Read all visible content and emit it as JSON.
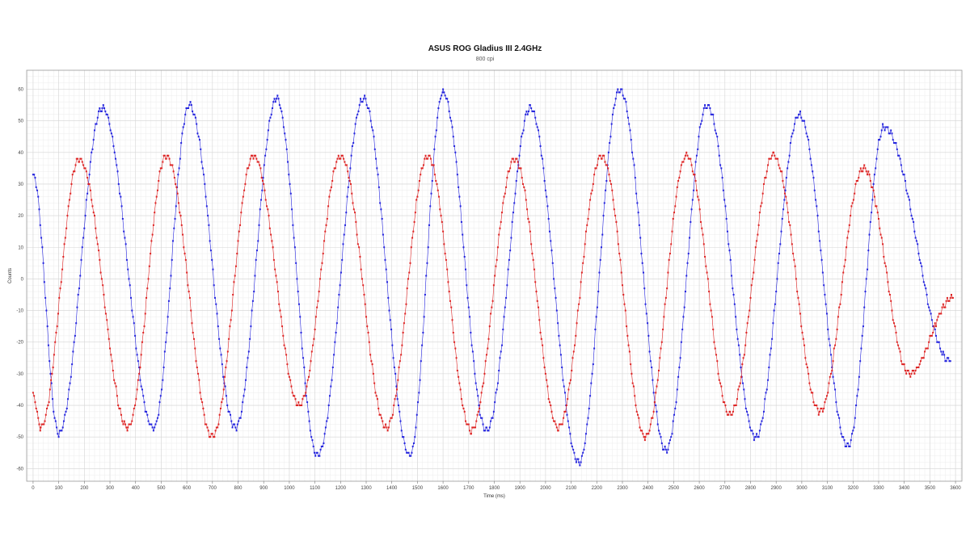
{
  "chart_data": {
    "type": "scatter",
    "title": "ASUS ROG Gladius III 2.4GHz",
    "subtitle": "800 cpi",
    "xlabel": "Time (ms)",
    "ylabel": "Counts",
    "xlim": [
      -25,
      3625
    ],
    "ylim": [
      -64,
      66
    ],
    "xticks": [
      0,
      100,
      200,
      300,
      400,
      500,
      600,
      700,
      800,
      900,
      1000,
      1100,
      1200,
      1300,
      1400,
      1500,
      1600,
      1700,
      1800,
      1900,
      2000,
      2100,
      2200,
      2300,
      2400,
      2500,
      2600,
      2700,
      2800,
      2900,
      3000,
      3100,
      3200,
      3300,
      3400,
      3500,
      3600
    ],
    "yticks": [
      -60,
      -50,
      -40,
      -30,
      -20,
      -10,
      0,
      10,
      20,
      30,
      40,
      50,
      60
    ],
    "grid": true,
    "series": [
      {
        "color": "#2222dd",
        "style": "line+markers",
        "sample_interval_ms": 4,
        "peaks": [
          [
            0,
            33
          ],
          [
            100,
            -49
          ],
          [
            270,
            54
          ],
          [
            470,
            -47
          ],
          [
            610,
            55
          ],
          [
            790,
            -47
          ],
          [
            950,
            57
          ],
          [
            1110,
            -56
          ],
          [
            1290,
            57
          ],
          [
            1470,
            -56
          ],
          [
            1600,
            59
          ],
          [
            1770,
            -48
          ],
          [
            1940,
            54
          ],
          [
            2130,
            -58
          ],
          [
            2290,
            60
          ],
          [
            2470,
            -54
          ],
          [
            2630,
            55
          ],
          [
            2820,
            -50
          ],
          [
            2990,
            52
          ],
          [
            3180,
            -53
          ],
          [
            3320,
            48
          ],
          [
            3580,
            -26
          ]
        ]
      },
      {
        "color": "#dd2222",
        "style": "line+markers",
        "sample_interval_ms": 4,
        "peaks": [
          [
            0,
            -37
          ],
          [
            30,
            -47
          ],
          [
            180,
            38
          ],
          [
            370,
            -47
          ],
          [
            520,
            39
          ],
          [
            700,
            -50
          ],
          [
            860,
            39
          ],
          [
            1040,
            -40
          ],
          [
            1200,
            39
          ],
          [
            1380,
            -47
          ],
          [
            1540,
            39
          ],
          [
            1710,
            -48
          ],
          [
            1880,
            38
          ],
          [
            2050,
            -47
          ],
          [
            2220,
            39
          ],
          [
            2390,
            -50
          ],
          [
            2550,
            39
          ],
          [
            2720,
            -43
          ],
          [
            2890,
            39
          ],
          [
            3070,
            -42
          ],
          [
            3240,
            35
          ],
          [
            3420,
            -30
          ],
          [
            3590,
            -6
          ]
        ]
      }
    ]
  }
}
